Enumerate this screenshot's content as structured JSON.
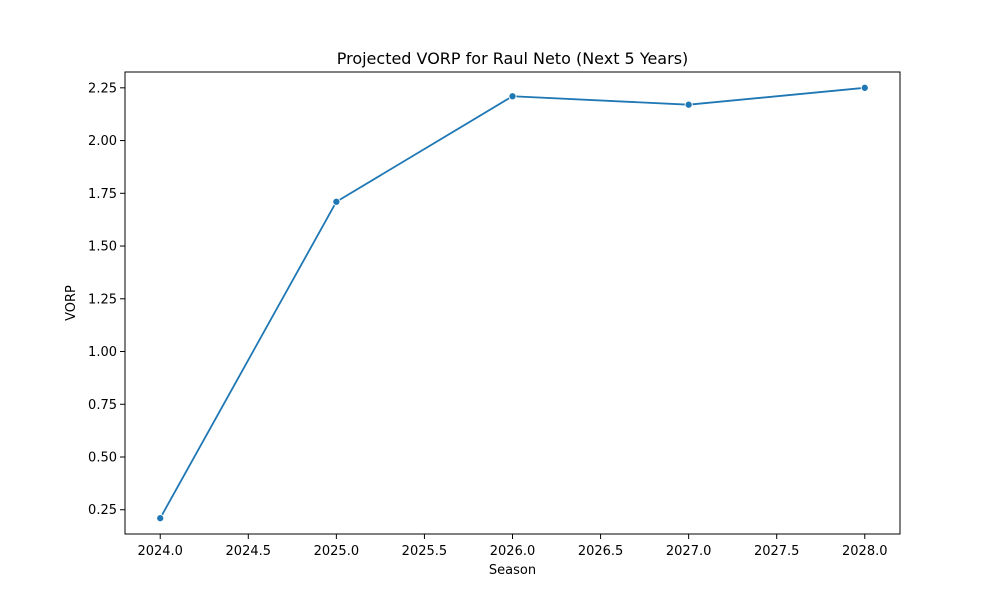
{
  "chart_data": {
    "type": "line",
    "title": "Projected VORP for Raul Neto (Next 5 Years)",
    "xlabel": "Season",
    "ylabel": "VORP",
    "x": [
      2024,
      2025,
      2026,
      2027,
      2028
    ],
    "series": [
      {
        "values": [
          0.21,
          1.71,
          2.21,
          2.17,
          2.25
        ]
      }
    ],
    "xlim": [
      2023.8,
      2028.2
    ],
    "ylim": [
      0.135,
      2.325
    ],
    "xticks": [
      "2024.0",
      "2024.5",
      "2025.0",
      "2025.5",
      "2026.0",
      "2026.5",
      "2027.0",
      "2027.5",
      "2028.0"
    ],
    "yticks": [
      "0.25",
      "0.50",
      "0.75",
      "1.00",
      "1.25",
      "1.50",
      "1.75",
      "2.00",
      "2.25"
    ],
    "grid": false,
    "line_color": "#1f77b4",
    "marker": "circle"
  }
}
